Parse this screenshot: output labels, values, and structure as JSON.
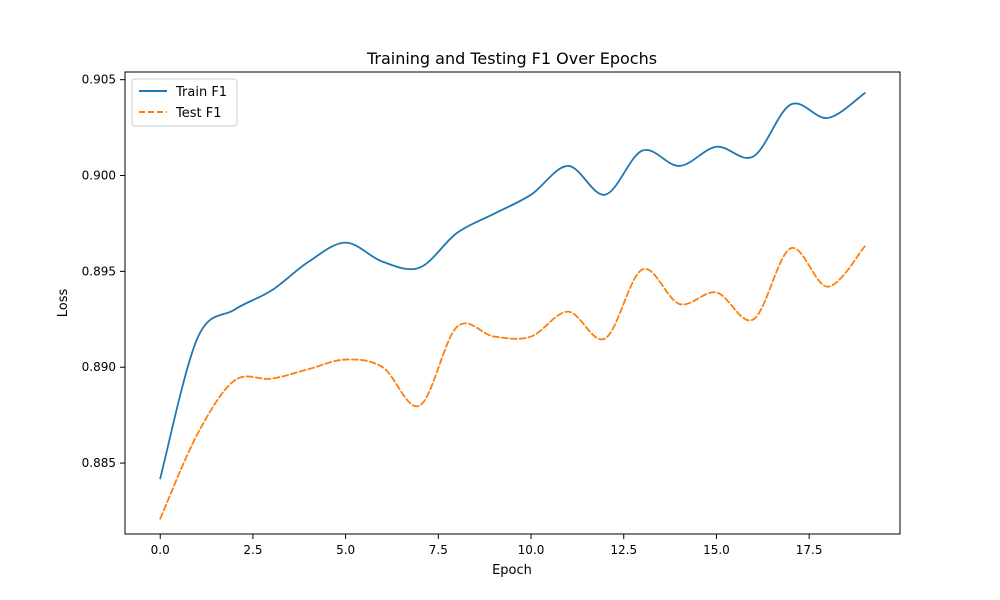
{
  "chart_data": {
    "type": "line",
    "title": "Training and Testing F1 Over Epochs",
    "xlabel": "Epoch",
    "ylabel": "Loss",
    "xlim": [
      -0.95,
      19.95
    ],
    "ylim": [
      0.8813,
      0.9054
    ],
    "x_ticks": [
      0.0,
      2.5,
      5.0,
      7.5,
      10.0,
      12.5,
      15.0,
      17.5
    ],
    "x_tick_labels": [
      "0.0",
      "2.5",
      "5.0",
      "7.5",
      "10.0",
      "12.5",
      "15.0",
      "17.5"
    ],
    "y_ticks": [
      0.885,
      0.89,
      0.895,
      0.9,
      0.905
    ],
    "y_tick_labels": [
      "0.885",
      "0.890",
      "0.895",
      "0.900",
      "0.905"
    ],
    "grid": false,
    "legend_position": "top-left",
    "x": [
      0,
      1,
      2,
      3,
      4,
      5,
      6,
      7,
      8,
      9,
      10,
      11,
      12,
      13,
      14,
      15,
      16,
      17,
      18,
      19
    ],
    "series": [
      {
        "name": "Train F1",
        "color": "#1f77b4",
        "style": "solid",
        "values": [
          0.8842,
          0.8915,
          0.893,
          0.894,
          0.8955,
          0.8965,
          0.8955,
          0.8952,
          0.897,
          0.898,
          0.899,
          0.9005,
          0.899,
          0.9013,
          0.9005,
          0.9015,
          0.901,
          0.9037,
          0.903,
          0.9043
        ]
      },
      {
        "name": "Test F1",
        "color": "#ff7f0e",
        "style": "dashed",
        "values": [
          0.8821,
          0.8865,
          0.8893,
          0.8894,
          0.8899,
          0.8904,
          0.89,
          0.888,
          0.8921,
          0.8916,
          0.8916,
          0.8929,
          0.8915,
          0.8951,
          0.8933,
          0.8939,
          0.8925,
          0.8962,
          0.8942,
          0.8963
        ]
      }
    ]
  }
}
